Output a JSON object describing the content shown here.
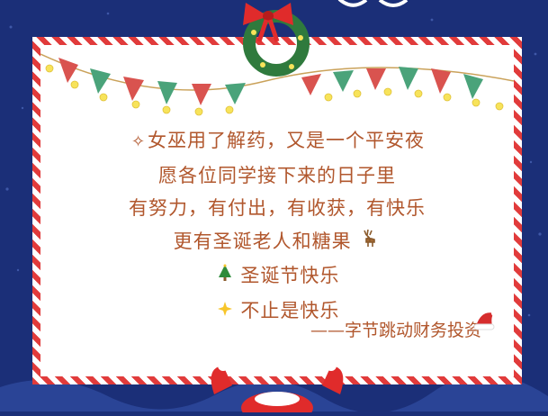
{
  "poem": {
    "line1": "女巫用了解药，又是一个平安夜",
    "line2": "愿各位同学接下来的日子里",
    "line3": "有努力，有付出，有收获，有快乐",
    "line4": "更有圣诞老人和糖果",
    "line5": "圣诞节快乐",
    "line6": "不止是快乐"
  },
  "signature": "——字节跳动财务投资",
  "colors": {
    "background": "#1b2f78",
    "border_red": "#e13b3b",
    "text_brown": "#b1572d",
    "bunting_red": "#d9534f",
    "bunting_green": "#4aa37a",
    "bulb_yellow": "#f7e35a"
  },
  "icons": [
    "fairy-icon",
    "reindeer-icon",
    "christmas-tree-icon",
    "sparkle-star-icon",
    "santa-hat-icon",
    "wreath-icon",
    "bow-icon",
    "santa-icon"
  ]
}
